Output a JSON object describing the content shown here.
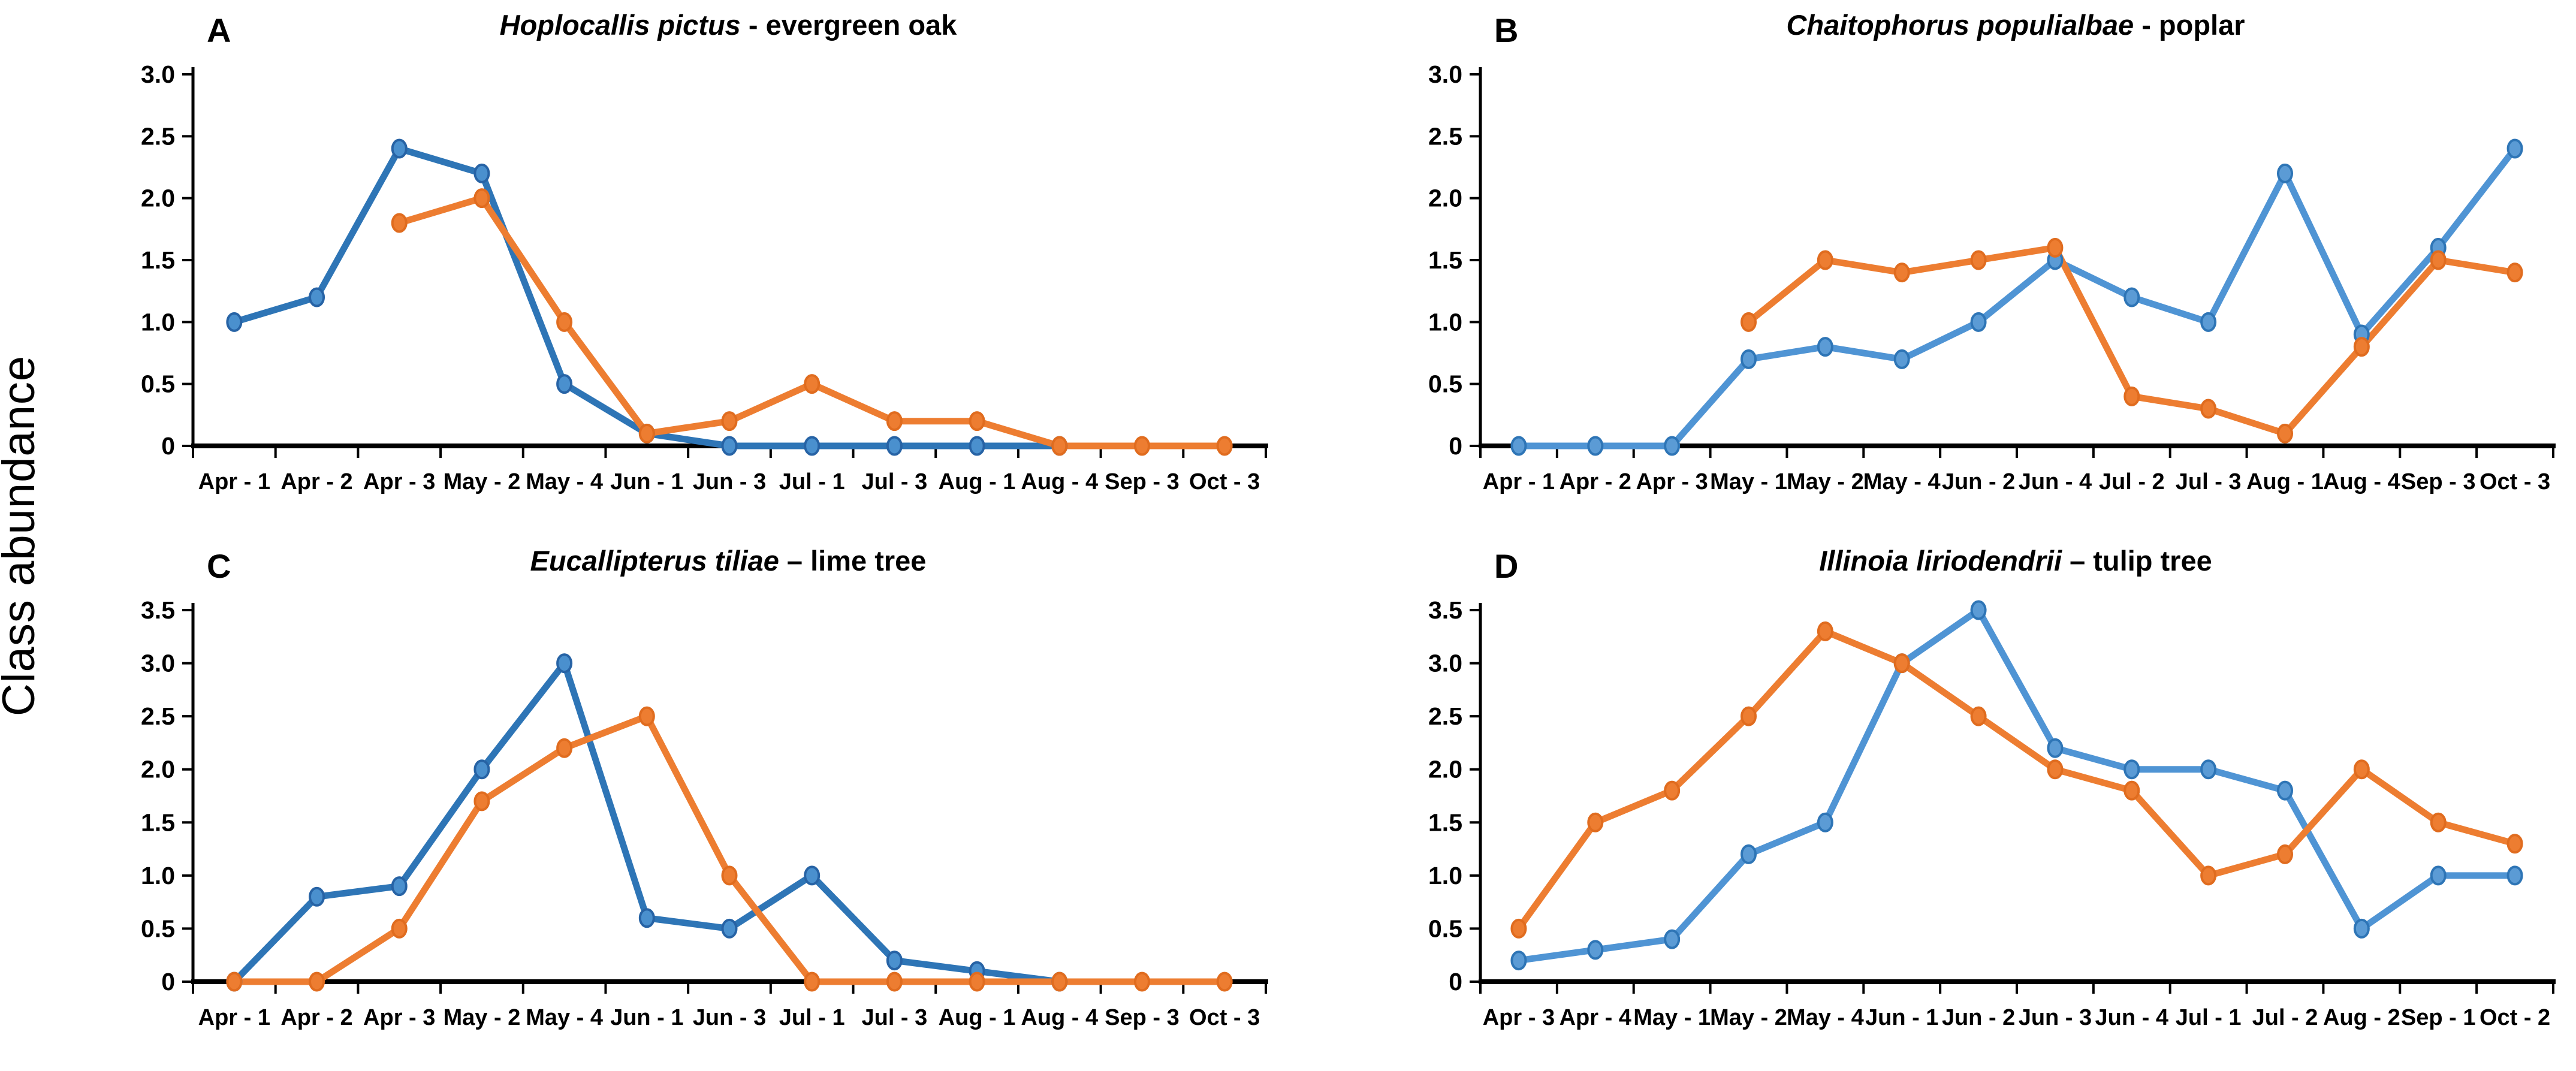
{
  "figure": {
    "ylabel": "Class abundance",
    "background": "#ffffff",
    "colors": {
      "orange": "#ED7D31",
      "orange_marker_fill": "#ED7D31",
      "orange_marker_stroke": "#E06C1F",
      "blue_dark": "#2E75B6",
      "blue_dark_marker_fill": "#4A90CE",
      "blue_dark_marker_stroke": "#2763A5",
      "blue_light": "#4F94D4",
      "blue_light_marker_fill": "#5B9BD5",
      "blue_light_marker_stroke": "#2E75B6",
      "axis": "#000000"
    },
    "panels": [
      {
        "letter": "A",
        "title_species": "Hoplocallis pictus",
        "title_rest": " - evergreen oak"
      },
      {
        "letter": "B",
        "title_species": "Chaitophorus populialbae",
        "title_rest": " - poplar"
      },
      {
        "letter": "C",
        "title_species": "Eucallipterus tiliae",
        "title_rest": " – lime tree"
      },
      {
        "letter": "D",
        "title_species": "Illinoia liriodendrii",
        "title_rest": " – tulip tree"
      }
    ]
  },
  "chart_data": [
    {
      "type": "line",
      "panel": "A",
      "title": "Hoplocallis pictus - evergreen oak",
      "xlabel": "",
      "ylabel": "Class abundance",
      "ylim": [
        0,
        3.0
      ],
      "ytick_step": 0.5,
      "grid": false,
      "legend": "none",
      "categories": [
        "Apr - 1",
        "Apr - 2",
        "Apr - 3",
        "May - 2",
        "May - 4",
        "Jun - 1",
        "Jun - 3",
        "Jul - 1",
        "Jul - 3",
        "Aug - 1",
        "Aug - 4",
        "Sep - 3",
        "Oct - 3"
      ],
      "series": [
        {
          "name": "blue",
          "color_key": "blue_dark",
          "values": [
            1.0,
            1.2,
            2.4,
            2.2,
            0.5,
            0.1,
            0,
            0,
            0,
            0,
            0,
            null,
            null
          ]
        },
        {
          "name": "orange",
          "color_key": "orange",
          "values": [
            null,
            null,
            1.8,
            2.0,
            1.0,
            0.1,
            0.2,
            0.5,
            0.2,
            0.2,
            0,
            0,
            0
          ]
        }
      ]
    },
    {
      "type": "line",
      "panel": "B",
      "title": "Chaitophorus populialbae - poplar",
      "xlabel": "",
      "ylabel": "Class abundance",
      "ylim": [
        0,
        3.0
      ],
      "ytick_step": 0.5,
      "grid": false,
      "legend": "none",
      "categories": [
        "Apr - 1",
        "Apr - 2",
        "Apr - 3",
        "May - 1",
        "May - 2",
        "May - 4",
        "Jun - 2",
        "Jun - 4",
        "Jul - 2",
        "Jul - 3",
        "Aug - 1",
        "Aug - 4",
        "Sep - 3",
        "Oct - 3"
      ],
      "series": [
        {
          "name": "blue",
          "color_key": "blue_light",
          "values": [
            0,
            0,
            0,
            0.7,
            0.8,
            0.7,
            1.0,
            1.5,
            1.2,
            1.0,
            2.2,
            0.9,
            1.6,
            2.4
          ]
        },
        {
          "name": "orange",
          "color_key": "orange",
          "values": [
            null,
            null,
            null,
            1.0,
            1.5,
            1.4,
            1.5,
            1.6,
            0.4,
            0.3,
            0.1,
            0.8,
            1.5,
            1.4
          ]
        }
      ]
    },
    {
      "type": "line",
      "panel": "C",
      "title": "Eucallipterus tiliae – lime tree",
      "xlabel": "",
      "ylabel": "Class abundance",
      "ylim": [
        0,
        3.5
      ],
      "ytick_step": 0.5,
      "grid": false,
      "legend": "none",
      "categories": [
        "Apr - 1",
        "Apr - 2",
        "Apr - 3",
        "May - 2",
        "May - 4",
        "Jun - 1",
        "Jun - 3",
        "Jul - 1",
        "Jul - 3",
        "Aug - 1",
        "Aug - 4",
        "Sep - 3",
        "Oct - 3"
      ],
      "series": [
        {
          "name": "blue",
          "color_key": "blue_dark",
          "values": [
            0,
            0.8,
            0.9,
            2.0,
            3.0,
            0.6,
            0.5,
            1.0,
            0.2,
            0.1,
            0,
            null,
            null
          ]
        },
        {
          "name": "orange",
          "color_key": "orange",
          "values": [
            0,
            0,
            0.5,
            1.7,
            2.2,
            2.5,
            1.0,
            0,
            0,
            0,
            0,
            0,
            0
          ]
        }
      ]
    },
    {
      "type": "line",
      "panel": "D",
      "title": "Illinoia liriodendrii – tulip tree",
      "xlabel": "",
      "ylabel": "Class abundance",
      "ylim": [
        0,
        3.5
      ],
      "ytick_step": 0.5,
      "grid": false,
      "legend": "none",
      "categories": [
        "Apr - 3",
        "Apr - 4",
        "May - 1",
        "May - 2",
        "May - 4",
        "Jun - 1",
        "Jun - 2",
        "Jun - 3",
        "Jun - 4",
        "Jul - 1",
        "Jul - 2",
        "Aug - 2",
        "Sep - 1",
        "Oct - 2"
      ],
      "series": [
        {
          "name": "blue",
          "color_key": "blue_light",
          "values": [
            0.2,
            0.3,
            0.4,
            1.2,
            1.5,
            3.0,
            3.5,
            2.2,
            2.0,
            2.0,
            1.8,
            0.5,
            1.0,
            1.0
          ]
        },
        {
          "name": "orange",
          "color_key": "orange",
          "values": [
            0.5,
            1.5,
            1.8,
            2.5,
            3.3,
            3.0,
            2.5,
            2.0,
            1.8,
            1.0,
            1.2,
            2.0,
            1.5,
            1.3
          ]
        }
      ]
    }
  ]
}
